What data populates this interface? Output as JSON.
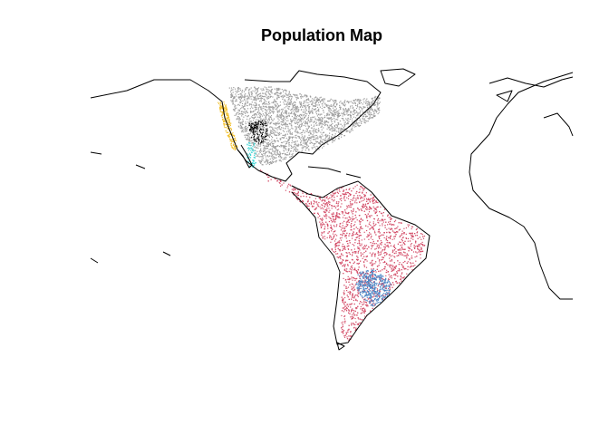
{
  "map": {
    "title": "Population Map"
  }
}
